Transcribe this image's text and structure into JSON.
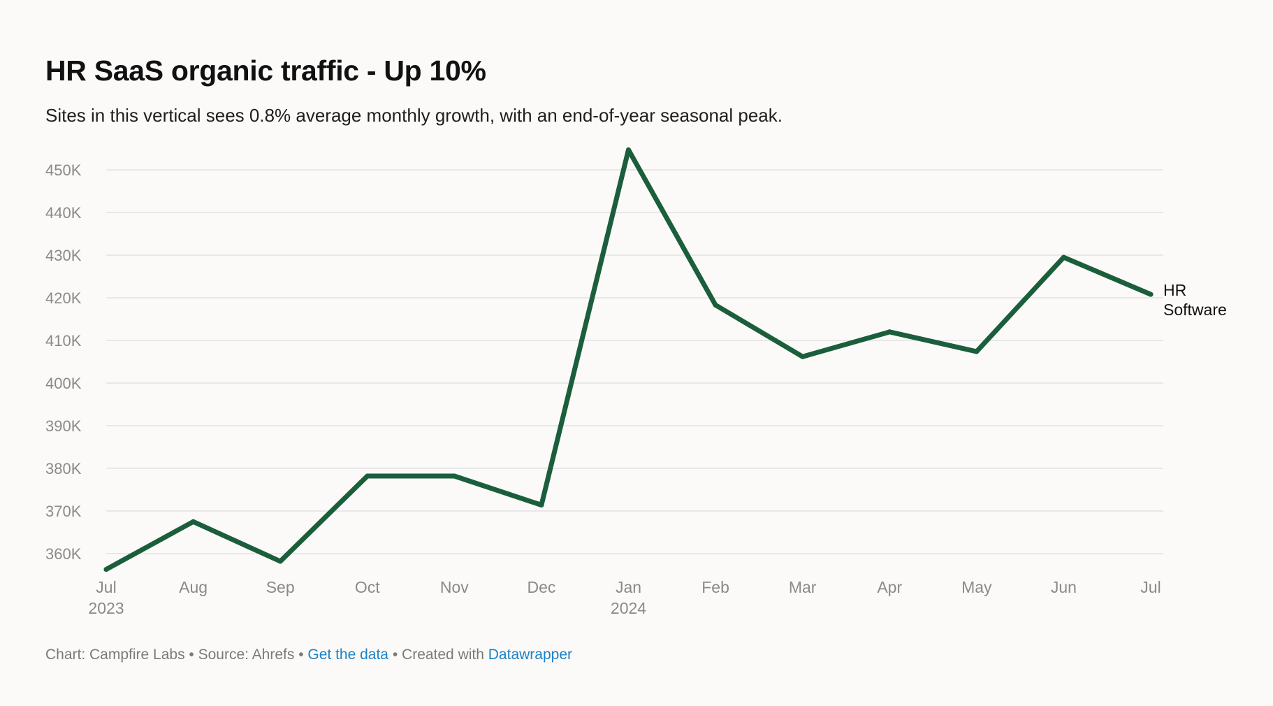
{
  "header": {
    "title": "HR SaaS organic traffic - Up 10%",
    "subtitle": "Sites in this vertical sees 0.8% average monthly growth, with an end-of-year seasonal peak."
  },
  "footer": {
    "chart_label": "Chart: Campfire Labs",
    "separator": " • ",
    "source_label": "Source: Ahrefs",
    "get_data_link": "Get the data",
    "created_label": "Created with",
    "datawrapper_link": "Datawrapper"
  },
  "colors": {
    "line": "#1b5e3c",
    "grid": "#e2e2e2",
    "tick": "#8a8a8a",
    "link": "#1d81c6"
  },
  "chart_data": {
    "type": "line",
    "title": "HR SaaS organic traffic - Up 10%",
    "xlabel": "",
    "ylabel": "",
    "ylim": [
      355000,
      460000
    ],
    "y_ticks": [
      360000,
      370000,
      380000,
      390000,
      400000,
      410000,
      420000,
      430000,
      440000,
      450000
    ],
    "y_tick_labels": [
      "360K",
      "370K",
      "380K",
      "390K",
      "400K",
      "410K",
      "420K",
      "430K",
      "440K",
      "450K"
    ],
    "categories": [
      "Jul",
      "Aug",
      "Sep",
      "Oct",
      "Nov",
      "Dec",
      "Jan",
      "Feb",
      "Mar",
      "Apr",
      "May",
      "Jun",
      "Jul"
    ],
    "category_sublabels": [
      "2023",
      "",
      "",
      "",
      "",
      "",
      "2024",
      "",
      "",
      "",
      "",
      "",
      ""
    ],
    "grid": true,
    "series": [
      {
        "name": "HR Software",
        "label_lines": [
          "HR",
          "Software"
        ],
        "values": [
          356300,
          367500,
          358200,
          378200,
          378200,
          371400,
          454700,
          418300,
          406200,
          412000,
          407400,
          429500,
          420800
        ]
      }
    ]
  }
}
